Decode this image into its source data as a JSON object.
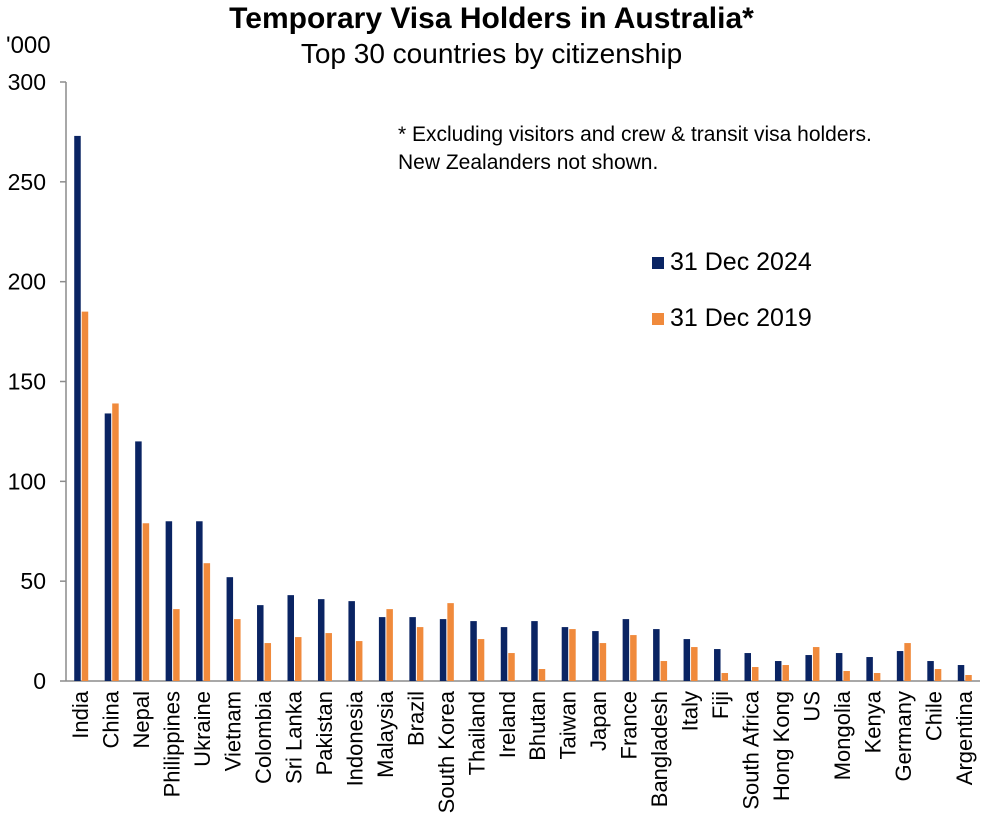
{
  "chart_data": {
    "type": "bar",
    "title": "Temporary Visa Holders in Australia*",
    "subtitle": "Top 30 countries by citizenship",
    "ylabel": "'000",
    "ylim": [
      0,
      300
    ],
    "yticks": [
      0,
      50,
      100,
      150,
      200,
      250,
      300
    ],
    "note_lines": [
      "* Excluding visitors and crew & transit visa holders.",
      "New Zealanders not shown."
    ],
    "categories": [
      "India",
      "China",
      "Nepal",
      "Philippines",
      "Ukraine",
      "Vietnam",
      "Colombia",
      "Sri Lanka",
      "Pakistan",
      "Indonesia",
      "Malaysia",
      "Brazil",
      "South Korea",
      "Thailand",
      "Ireland",
      "Bhutan",
      "Taiwan",
      "Japan",
      "France",
      "Bangladesh",
      "Italy",
      "Fiji",
      "South Africa",
      "Hong Kong",
      "US",
      "Mongolia",
      "Kenya",
      "Germany",
      "Chile",
      "Argentina"
    ],
    "series": [
      {
        "name": "31 Dec 2024",
        "color": "#0a2463",
        "values": [
          273,
          134,
          120,
          80,
          80,
          52,
          38,
          43,
          41,
          40,
          32,
          32,
          31,
          30,
          27,
          30,
          27,
          25,
          31,
          26,
          21,
          16,
          14,
          10,
          13,
          14,
          12,
          15,
          10,
          8
        ]
      },
      {
        "name": "31 Dec 2019",
        "color": "#f08a3c",
        "values": [
          185,
          139,
          79,
          36,
          59,
          31,
          19,
          22,
          24,
          20,
          36,
          27,
          39,
          21,
          14,
          6,
          26,
          19,
          23,
          10,
          17,
          4,
          7,
          8,
          17,
          5,
          4,
          19,
          6,
          3
        ]
      }
    ],
    "legend": "inside upper right",
    "grid": false
  }
}
